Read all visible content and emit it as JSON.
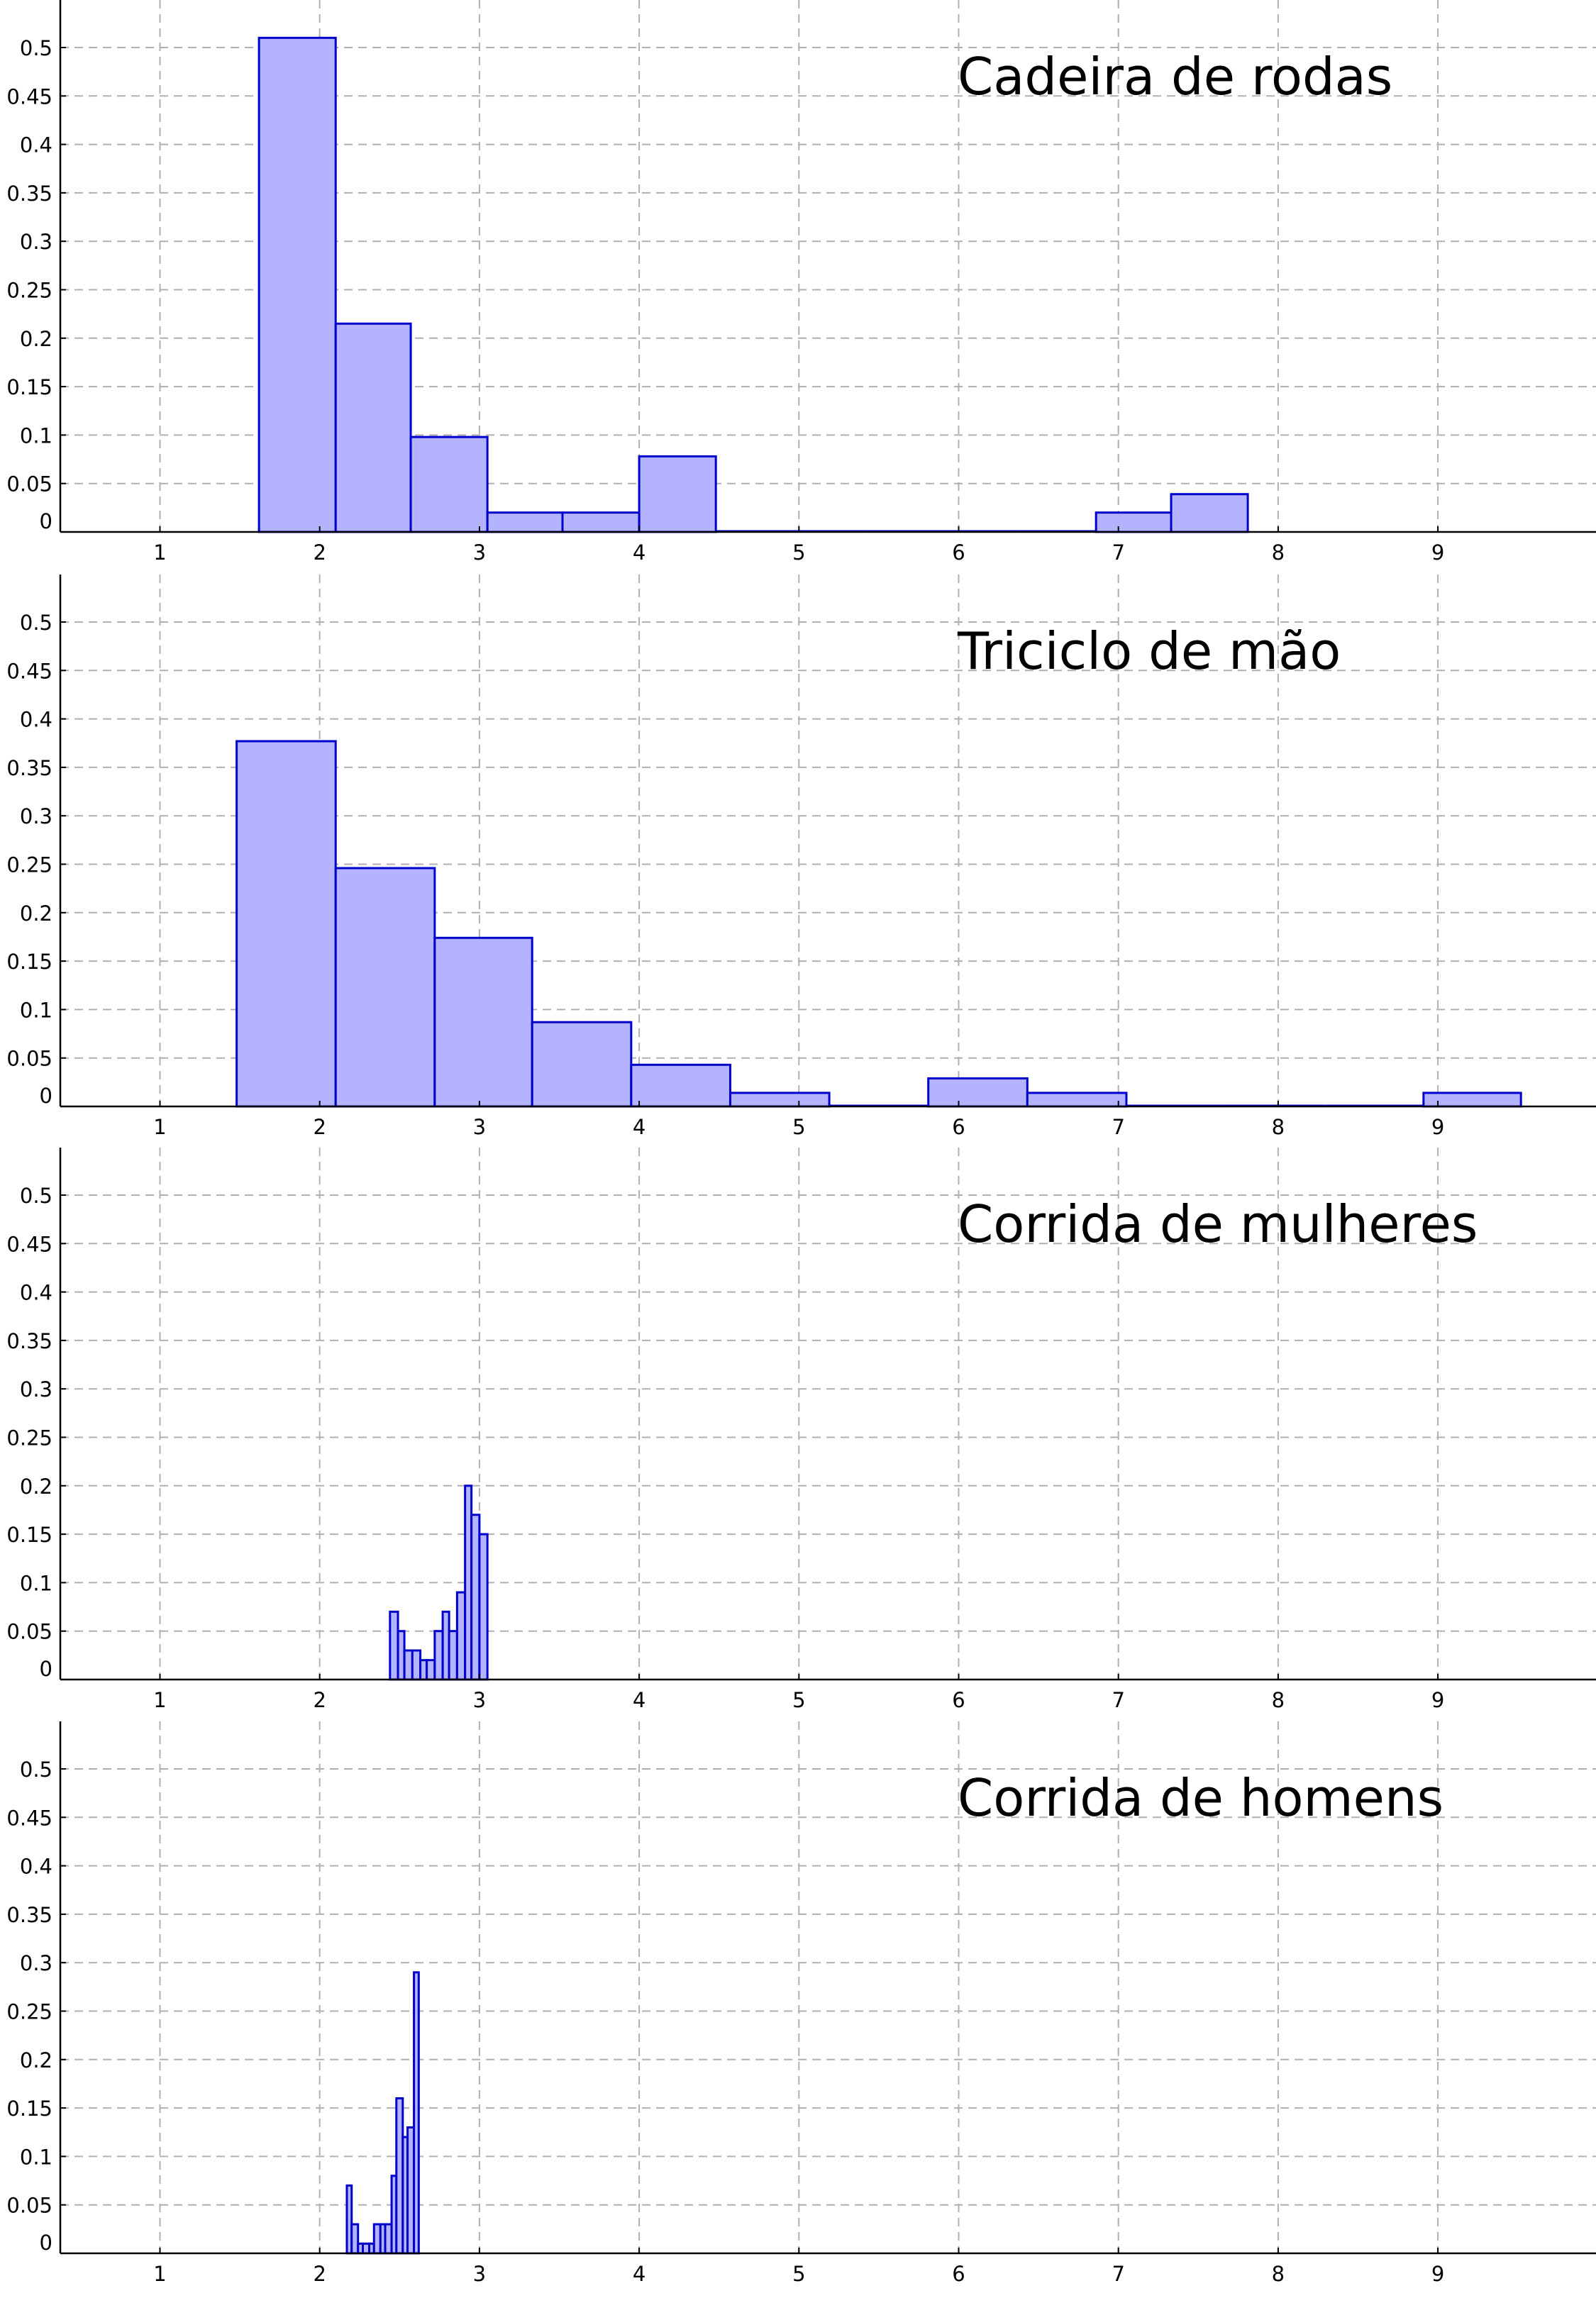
{
  "chart_data": [
    {
      "type": "bar",
      "title": "Cadeira de rodas",
      "xlim": [
        0.3,
        9.8
      ],
      "ylim": [
        0,
        0.55
      ],
      "xticks": [
        "1",
        "2",
        "3",
        "4",
        "5",
        "6",
        "7",
        "8",
        "9"
      ],
      "yticks": [
        "0",
        "0.05",
        "0.1",
        "0.15",
        "0.2",
        "0.25",
        "0.3",
        "0.35",
        "0.4",
        "0.45",
        "0.5"
      ],
      "grid": true,
      "bar_color": "#b3b3ff",
      "edge_color": "#0000cc",
      "bins": [
        {
          "x0": 1.62,
          "x1": 2.1,
          "value": 0.51
        },
        {
          "x0": 2.1,
          "x1": 2.57,
          "value": 0.215
        },
        {
          "x0": 2.57,
          "x1": 3.05,
          "value": 0.098
        },
        {
          "x0": 3.05,
          "x1": 3.52,
          "value": 0.02
        },
        {
          "x0": 3.52,
          "x1": 4.0,
          "value": 0.02
        },
        {
          "x0": 4.0,
          "x1": 4.48,
          "value": 0.078
        },
        {
          "x0": 4.48,
          "x1": 4.95,
          "value": 0
        },
        {
          "x0": 4.95,
          "x1": 5.43,
          "value": 0
        },
        {
          "x0": 5.43,
          "x1": 5.9,
          "value": 0
        },
        {
          "x0": 5.9,
          "x1": 6.38,
          "value": 0
        },
        {
          "x0": 6.38,
          "x1": 6.86,
          "value": 0
        },
        {
          "x0": 6.86,
          "x1": 7.33,
          "value": 0.02
        },
        {
          "x0": 7.33,
          "x1": 7.81,
          "value": 0.039
        }
      ]
    },
    {
      "type": "bar",
      "title": "Triciclo de mão",
      "xlim": [
        0.3,
        9.8
      ],
      "ylim": [
        0,
        0.55
      ],
      "xticks": [
        "1",
        "2",
        "3",
        "4",
        "5",
        "6",
        "7",
        "8",
        "9"
      ],
      "yticks": [
        "0",
        "0.05",
        "0.1",
        "0.15",
        "0.2",
        "0.25",
        "0.3",
        "0.35",
        "0.4",
        "0.45",
        "0.5"
      ],
      "grid": true,
      "bar_color": "#b3b3ff",
      "edge_color": "#0000cc",
      "bins": [
        {
          "x0": 1.48,
          "x1": 2.1,
          "value": 0.377
        },
        {
          "x0": 2.1,
          "x1": 2.72,
          "value": 0.246
        },
        {
          "x0": 2.72,
          "x1": 3.33,
          "value": 0.174
        },
        {
          "x0": 3.33,
          "x1": 3.95,
          "value": 0.087
        },
        {
          "x0": 3.95,
          "x1": 4.57,
          "value": 0.043
        },
        {
          "x0": 4.57,
          "x1": 5.19,
          "value": 0.014
        },
        {
          "x0": 5.19,
          "x1": 5.81,
          "value": 0
        },
        {
          "x0": 5.81,
          "x1": 6.43,
          "value": 0.029
        },
        {
          "x0": 6.43,
          "x1": 7.05,
          "value": 0.014
        },
        {
          "x0": 7.05,
          "x1": 7.67,
          "value": 0
        },
        {
          "x0": 7.67,
          "x1": 8.29,
          "value": 0
        },
        {
          "x0": 8.29,
          "x1": 8.91,
          "value": 0
        },
        {
          "x0": 8.91,
          "x1": 9.52,
          "value": 0.014
        }
      ]
    },
    {
      "type": "bar",
      "title": "Corrida de mulheres",
      "xlim": [
        0.3,
        9.8
      ],
      "ylim": [
        0,
        0.55
      ],
      "xticks": [
        "1",
        "2",
        "3",
        "4",
        "5",
        "6",
        "7",
        "8",
        "9"
      ],
      "yticks": [
        "0",
        "0.05",
        "0.1",
        "0.15",
        "0.2",
        "0.25",
        "0.3",
        "0.35",
        "0.4",
        "0.45",
        "0.5"
      ],
      "grid": true,
      "bar_color": "#b3b3ff",
      "edge_color": "#0000cc",
      "bins": [
        {
          "x0": 2.44,
          "x1": 2.49,
          "value": 0.07
        },
        {
          "x0": 2.49,
          "x1": 2.53,
          "value": 0.05
        },
        {
          "x0": 2.53,
          "x1": 2.58,
          "value": 0.03
        },
        {
          "x0": 2.58,
          "x1": 2.63,
          "value": 0.03
        },
        {
          "x0": 2.63,
          "x1": 2.67,
          "value": 0.02
        },
        {
          "x0": 2.67,
          "x1": 2.72,
          "value": 0.02
        },
        {
          "x0": 2.72,
          "x1": 2.77,
          "value": 0.05
        },
        {
          "x0": 2.77,
          "x1": 2.81,
          "value": 0.07
        },
        {
          "x0": 2.81,
          "x1": 2.86,
          "value": 0.05
        },
        {
          "x0": 2.86,
          "x1": 2.91,
          "value": 0.09
        },
        {
          "x0": 2.91,
          "x1": 2.95,
          "value": 0.2
        },
        {
          "x0": 2.95,
          "x1": 3.0,
          "value": 0.17
        },
        {
          "x0": 3.0,
          "x1": 3.05,
          "value": 0.15
        }
      ]
    },
    {
      "type": "bar",
      "title": "Corrida de homens",
      "xlim": [
        0.3,
        9.8
      ],
      "ylim": [
        0,
        0.55
      ],
      "xticks": [
        "1",
        "2",
        "3",
        "4",
        "5",
        "6",
        "7",
        "8",
        "9"
      ],
      "yticks": [
        "0",
        "0.05",
        "0.1",
        "0.15",
        "0.2",
        "0.25",
        "0.3",
        "0.35",
        "0.4",
        "0.45",
        "0.5"
      ],
      "grid": true,
      "bar_color": "#b3b3ff",
      "edge_color": "#0000cc",
      "bins": [
        {
          "x0": 2.17,
          "x1": 2.2,
          "value": 0.07
        },
        {
          "x0": 2.2,
          "x1": 2.24,
          "value": 0.03
        },
        {
          "x0": 2.24,
          "x1": 2.27,
          "value": 0.01
        },
        {
          "x0": 2.27,
          "x1": 2.31,
          "value": 0.01
        },
        {
          "x0": 2.31,
          "x1": 2.34,
          "value": 0.01
        },
        {
          "x0": 2.34,
          "x1": 2.38,
          "value": 0.03
        },
        {
          "x0": 2.38,
          "x1": 2.41,
          "value": 0.03
        },
        {
          "x0": 2.41,
          "x1": 2.45,
          "value": 0.03
        },
        {
          "x0": 2.45,
          "x1": 2.48,
          "value": 0.08
        },
        {
          "x0": 2.48,
          "x1": 2.52,
          "value": 0.16
        },
        {
          "x0": 2.52,
          "x1": 2.55,
          "value": 0.12
        },
        {
          "x0": 2.55,
          "x1": 2.59,
          "value": 0.13
        },
        {
          "x0": 2.59,
          "x1": 2.62,
          "value": 0.29
        }
      ]
    }
  ]
}
